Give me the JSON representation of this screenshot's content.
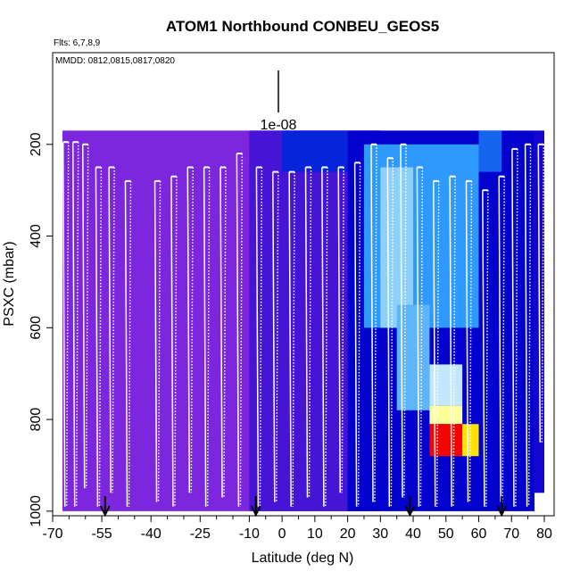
{
  "chart_data": {
    "type": "heatmap",
    "title": "ATOM1 Northbound CONBEU_GEOS5",
    "subtitle_flights": "Flts: 6,7,8,9",
    "subtitle_dates": "MMDD: 0812,0815,0817,0820",
    "xlabel": "Latitude (deg N)",
    "ylabel": "PSXC (mbar)",
    "xlim": [
      -70,
      83
    ],
    "ylim": [
      1010,
      0
    ],
    "x_ticks": [
      -70,
      -55,
      -40,
      -25,
      -10,
      0,
      10,
      20,
      30,
      40,
      50,
      60,
      70,
      80
    ],
    "x_minor_ticks": [
      -65,
      -60,
      -50,
      -45,
      -35,
      -30,
      -20,
      -15,
      -5,
      5,
      15,
      25,
      35,
      45,
      55,
      65,
      75
    ],
    "y_ticks": [
      200,
      400,
      600,
      800,
      1000
    ],
    "scale_bar_label": "1e-08",
    "grid": false,
    "colormap": [
      "#8a2be2",
      "#6a1fd8",
      "#0000cd",
      "#1e90ff",
      "#87cefa",
      "#ffffff",
      "#ffff00",
      "#ffa500",
      "#ff0000",
      "#b22222"
    ],
    "heatmap_cells": [
      {
        "x0": -67,
        "x1": 30,
        "y0": 170,
        "y1": 1000,
        "level": 0.05
      },
      {
        "x0": -10,
        "x1": 30,
        "y0": 170,
        "y1": 1000,
        "level": 0.15
      },
      {
        "x0": 0,
        "x1": 20,
        "y0": 170,
        "y1": 260,
        "level": 0.25
      },
      {
        "x0": 20,
        "x1": 77,
        "y0": 170,
        "y1": 1000,
        "level": 0.22
      },
      {
        "x0": 25,
        "x1": 60,
        "y0": 200,
        "y1": 600,
        "level": 0.35
      },
      {
        "x0": 30,
        "x1": 40,
        "y0": 250,
        "y1": 600,
        "level": 0.45
      },
      {
        "x0": 60,
        "x1": 67,
        "y0": 170,
        "y1": 260,
        "level": 0.3
      },
      {
        "x0": 35,
        "x1": 45,
        "y0": 550,
        "y1": 780,
        "level": 0.4
      },
      {
        "x0": 45,
        "x1": 55,
        "y0": 680,
        "y1": 770,
        "level": 0.5
      },
      {
        "x0": 45,
        "x1": 55,
        "y0": 770,
        "y1": 810,
        "level": 0.6
      },
      {
        "x0": 45,
        "x1": 55,
        "y0": 810,
        "y1": 880,
        "level": 0.9
      },
      {
        "x0": 55,
        "x1": 60,
        "y0": 810,
        "y1": 880,
        "level": 0.7
      },
      {
        "x0": 77,
        "x1": 80,
        "y0": 170,
        "y1": 960,
        "level": 0.2
      }
    ],
    "flight_profiles": [
      {
        "lat": -66,
        "p_top": 195,
        "p_bottom": 990
      },
      {
        "lat": -63,
        "p_top": 195,
        "p_bottom": 990
      },
      {
        "lat": -60,
        "p_top": 200,
        "p_bottom": 950
      },
      {
        "lat": -56,
        "p_top": 250,
        "p_bottom": 990
      },
      {
        "lat": -52,
        "p_top": 250,
        "p_bottom": 960
      },
      {
        "lat": -47,
        "p_top": 280,
        "p_bottom": 990
      },
      {
        "lat": -38,
        "p_top": 280,
        "p_bottom": 980
      },
      {
        "lat": -33,
        "p_top": 270,
        "p_bottom": 990
      },
      {
        "lat": -28,
        "p_top": 250,
        "p_bottom": 960
      },
      {
        "lat": -23,
        "p_top": 250,
        "p_bottom": 990
      },
      {
        "lat": -18,
        "p_top": 250,
        "p_bottom": 970
      },
      {
        "lat": -13,
        "p_top": 220,
        "p_bottom": 990
      },
      {
        "lat": -7,
        "p_top": 250,
        "p_bottom": 990
      },
      {
        "lat": -2,
        "p_top": 260,
        "p_bottom": 980
      },
      {
        "lat": 3,
        "p_top": 260,
        "p_bottom": 990
      },
      {
        "lat": 8,
        "p_top": 250,
        "p_bottom": 970
      },
      {
        "lat": 13,
        "p_top": 250,
        "p_bottom": 990
      },
      {
        "lat": 18,
        "p_top": 250,
        "p_bottom": 960
      },
      {
        "lat": 23,
        "p_top": 240,
        "p_bottom": 990
      },
      {
        "lat": 28,
        "p_top": 200,
        "p_bottom": 980
      },
      {
        "lat": 33,
        "p_top": 230,
        "p_bottom": 990
      },
      {
        "lat": 37,
        "p_top": 200,
        "p_bottom": 970
      },
      {
        "lat": 42,
        "p_top": 250,
        "p_bottom": 990
      },
      {
        "lat": 47,
        "p_top": 280,
        "p_bottom": 990
      },
      {
        "lat": 52,
        "p_top": 270,
        "p_bottom": 990
      },
      {
        "lat": 57,
        "p_top": 280,
        "p_bottom": 980
      },
      {
        "lat": 62,
        "p_top": 300,
        "p_bottom": 990
      },
      {
        "lat": 67,
        "p_top": 270,
        "p_bottom": 980
      },
      {
        "lat": 71,
        "p_top": 210,
        "p_bottom": 990
      },
      {
        "lat": 75,
        "p_top": 200,
        "p_bottom": 990
      },
      {
        "lat": 79,
        "p_top": 200,
        "p_bottom": 850
      }
    ],
    "arrow_markers": [
      -54,
      -8,
      39,
      67
    ]
  }
}
